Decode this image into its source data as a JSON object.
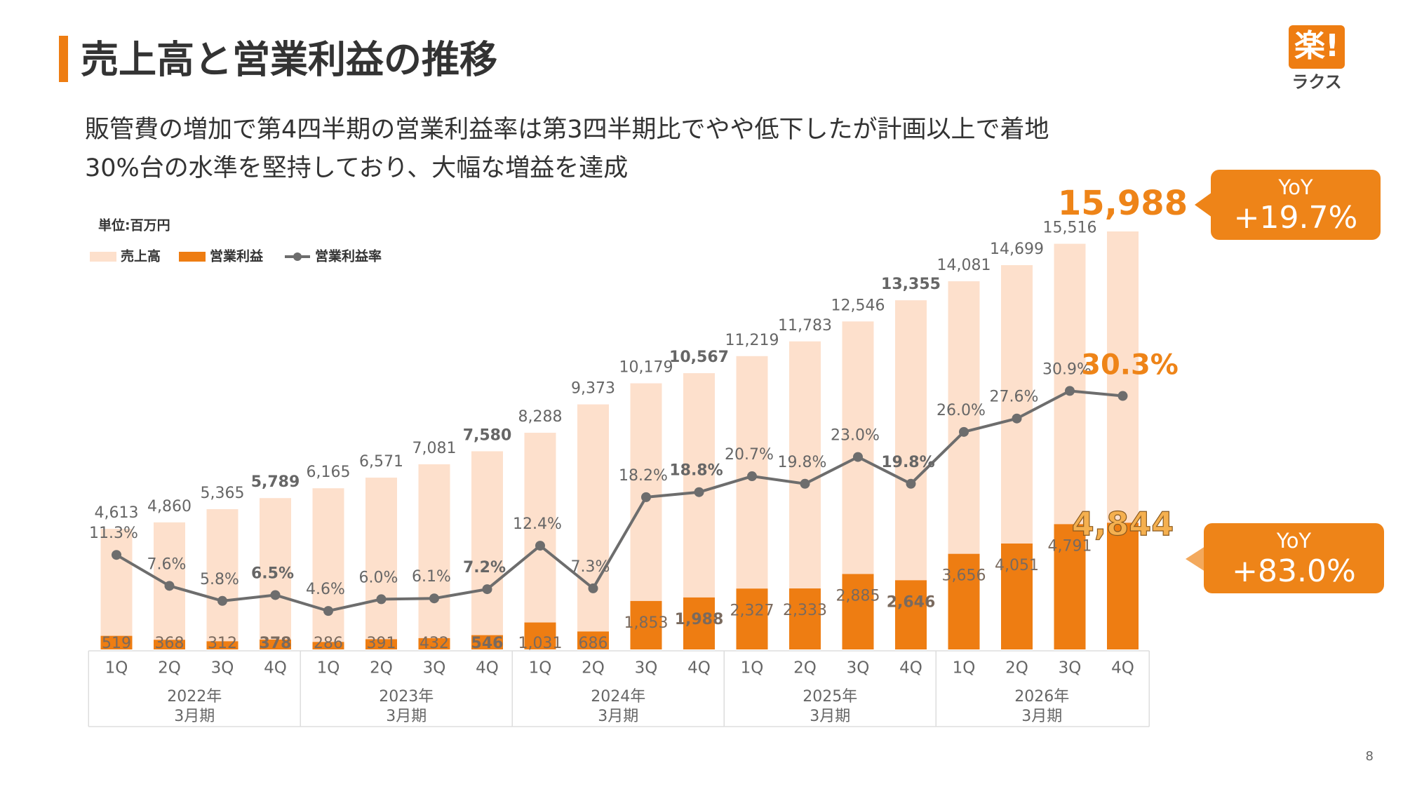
{
  "header": {
    "title": "売上高と営業利益の推移"
  },
  "subtitle": [
    "販管費の増加で第4四半期の営業利益率は第3四半期比でやや低下したが計画以上で着地",
    "30%台の水準を堅持しており、大幅な増益を達成"
  ],
  "logo": {
    "mark": "楽!",
    "name": "ラクス"
  },
  "page_number": "8",
  "chart_data": {
    "type": "bar",
    "unit_label": "単位:百万円",
    "categories": [
      "1Q",
      "2Q",
      "3Q",
      "4Q",
      "1Q",
      "2Q",
      "3Q",
      "4Q",
      "1Q",
      "2Q",
      "3Q",
      "4Q",
      "1Q",
      "2Q",
      "3Q",
      "4Q",
      "1Q",
      "2Q",
      "3Q",
      "4Q"
    ],
    "groups": [
      {
        "year": "2022年",
        "period": "3月期"
      },
      {
        "year": "2023年",
        "period": "3月期"
      },
      {
        "year": "2024年",
        "period": "3月期"
      },
      {
        "year": "2025年",
        "period": "3月期"
      },
      {
        "year": "2026年",
        "period": "3月期"
      }
    ],
    "series": [
      {
        "name": "売上高",
        "type": "bar",
        "color": "#fde0cc",
        "values": [
          4613,
          4860,
          5365,
          5789,
          6165,
          6571,
          7081,
          7580,
          8288,
          9373,
          10179,
          10567,
          11219,
          11783,
          12546,
          13355,
          14081,
          14699,
          15516,
          15988
        ],
        "value_labels": [
          "4,613",
          "4,860",
          "5,365",
          "5,789",
          "6,165",
          "6,571",
          "7,081",
          "7,580",
          "8,288",
          "9,373",
          "10,179",
          "10,567",
          "11,219",
          "11,783",
          "12,546",
          "13,355",
          "14,081",
          "14,699",
          "15,516",
          "15,988"
        ]
      },
      {
        "name": "営業利益",
        "type": "bar",
        "color": "#ee7d12",
        "values": [
          519,
          368,
          312,
          378,
          286,
          391,
          432,
          546,
          1031,
          686,
          1853,
          1988,
          2327,
          2333,
          2885,
          2646,
          3656,
          4051,
          4791,
          4844
        ],
        "value_labels": [
          "519",
          "368",
          "312",
          "378",
          "286",
          "391",
          "432",
          "546",
          "1,031",
          "686",
          "1,853",
          "1,988",
          "2,327",
          "2,333",
          "2,885",
          "2,646",
          "3,656",
          "4,051",
          "4,791",
          "4,844"
        ]
      },
      {
        "name": "営業利益率",
        "type": "line",
        "color": "#6d6d6d",
        "values": [
          11.3,
          7.6,
          5.8,
          6.5,
          4.6,
          6.0,
          6.1,
          7.2,
          12.4,
          7.3,
          18.2,
          18.8,
          20.7,
          19.8,
          23.0,
          19.8,
          26.0,
          27.6,
          30.9,
          30.3
        ],
        "value_labels": [
          "11.3%",
          "7.6%",
          "5.8%",
          "6.5%",
          "4.6%",
          "6.0%",
          "6.1%",
          "7.2%",
          "12.4%",
          "7.3%",
          "18.2%",
          "18.8%",
          "20.7%",
          "19.8%",
          "23.0%",
          "19.8%",
          "26.0%",
          "27.6%",
          "30.9%",
          "30.3%"
        ]
      }
    ],
    "annotations": [
      {
        "label": "YoY",
        "value": "+19.7%"
      },
      {
        "label": "YoY",
        "value": "+83.0%"
      }
    ]
  }
}
